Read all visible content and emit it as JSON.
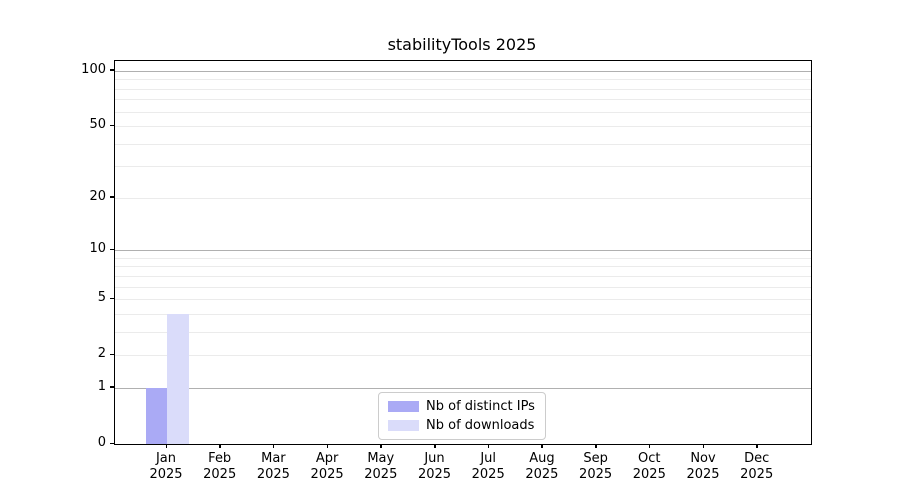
{
  "chart_data": {
    "type": "bar",
    "title": "stabilityTools 2025",
    "xlabel": "",
    "ylabel": "",
    "categories": [
      "Jan 2025",
      "Feb 2025",
      "Mar 2025",
      "Apr 2025",
      "May 2025",
      "Jun 2025",
      "Jul 2025",
      "Aug 2025",
      "Sep 2025",
      "Oct 2025",
      "Nov 2025",
      "Dec 2025"
    ],
    "series": [
      {
        "name": "Nb of distinct IPs",
        "color": "#aaaaf5",
        "values": [
          1,
          0,
          0,
          0,
          0,
          0,
          0,
          0,
          0,
          0,
          0,
          0
        ]
      },
      {
        "name": "Nb of downloads",
        "color": "#dadcfa",
        "values": [
          4,
          0,
          0,
          0,
          0,
          0,
          0,
          0,
          0,
          0,
          0,
          0
        ]
      }
    ],
    "y_scale": "log1p",
    "y_ticks": [
      0,
      1,
      2,
      5,
      10,
      20,
      50,
      100
    ],
    "ylim": [
      0,
      113
    ],
    "grid": true,
    "legend_position": "lower center"
  }
}
